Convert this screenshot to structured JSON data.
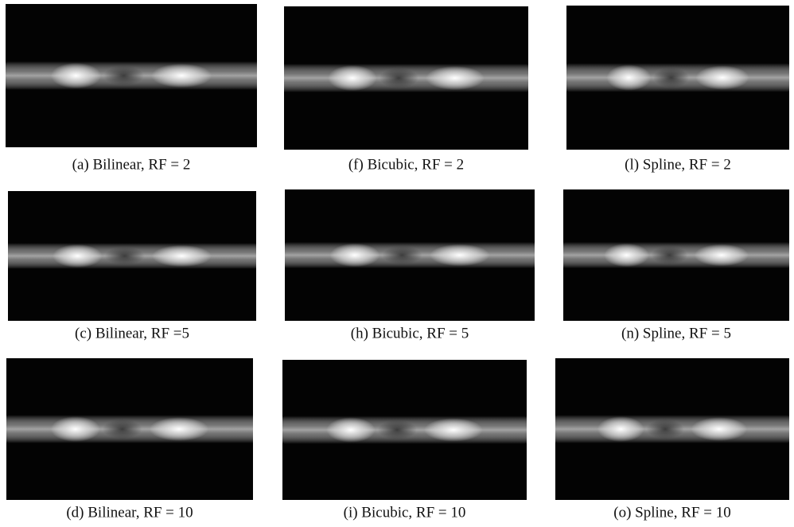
{
  "panels": [
    {
      "caption": "(a) Bilinear, RF = 2"
    },
    {
      "caption": "(f) Bicubic, RF = 2"
    },
    {
      "caption": "(l) Spline, RF = 2"
    },
    {
      "caption": "(c) Bilinear, RF =5"
    },
    {
      "caption": "(h) Bicubic, RF = 5"
    },
    {
      "caption": "(n) Spline, RF = 5"
    },
    {
      "caption": "(d) Bilinear, RF = 10"
    },
    {
      "caption": "(i) Bicubic, RF = 10"
    },
    {
      "caption": "(o) Spline, RF = 10"
    }
  ]
}
